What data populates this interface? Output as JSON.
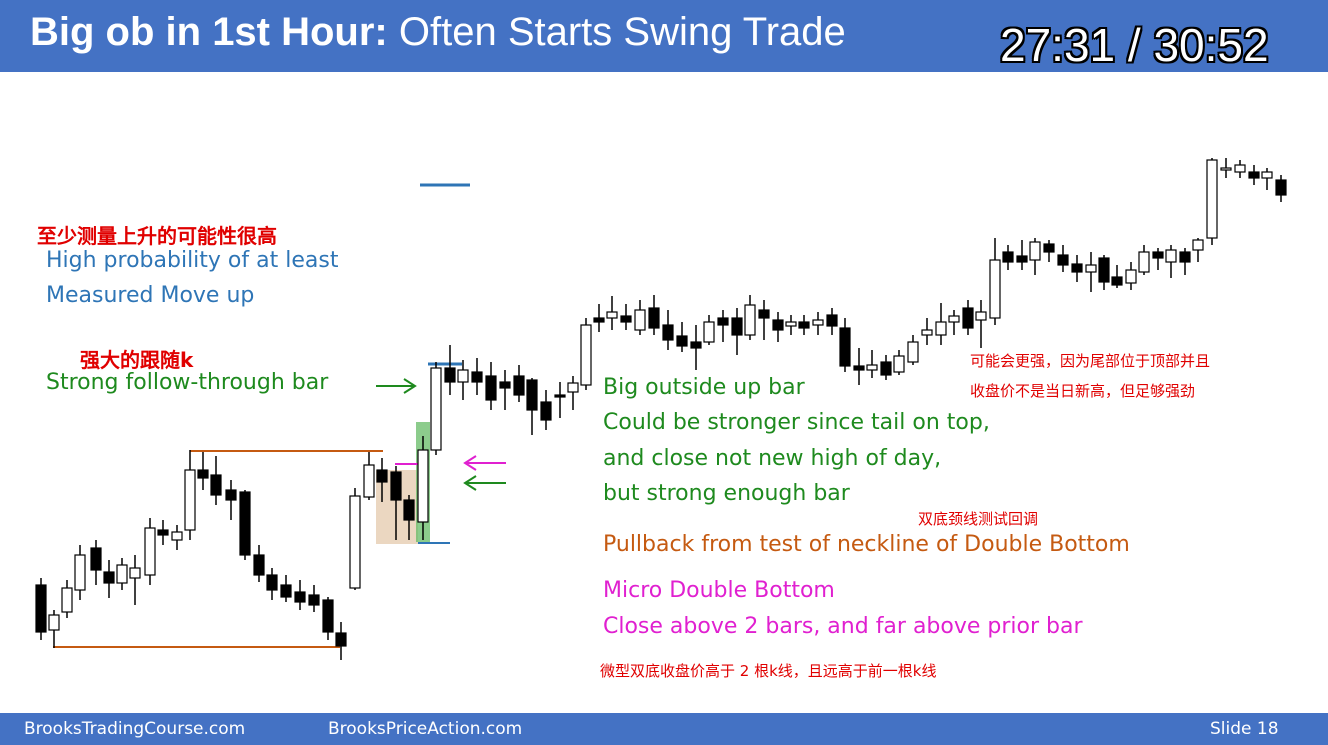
{
  "header": {
    "title_bold": "Big ob in 1st Hour:",
    "title_rest": " Often Starts Swing Trade",
    "timer": "27:31 / 30:52"
  },
  "footer": {
    "left": "BrooksTradingCourse.com",
    "center": "BrooksPriceAction.com",
    "right": "Slide  18"
  },
  "annotations": {
    "measured_move_cn": "至少测量上升的可能性很高",
    "measured_move_en_1": "High probability of at least",
    "measured_move_en_2": "Measured Move up",
    "follow_through_cn": "强大的跟随k",
    "follow_through_en": "Strong follow-through bar",
    "outside_bar_1": "Big outside up bar",
    "outside_bar_2": "Could be stronger since tail on top,",
    "outside_bar_3": "and close not new high of day,",
    "outside_bar_4": "but strong enough bar",
    "right_cn_1": "可能会更强，因为尾部位于顶部并且",
    "right_cn_2": "收盘价不是当日新高，但足够强劲",
    "pullback_cn": "双底颈线测试回调",
    "pullback_en": "Pullback from test of neckline of Double Bottom",
    "micro_db_1": "Micro Double Bottom",
    "micro_db_2": "Close above 2 bars, and far above prior bar",
    "micro_db_cn": "微型双底收盘价高于 2 根k线，且远高于前一根k线"
  },
  "colors": {
    "header_bg": "#4472c4",
    "blue_text": "#2e75b6",
    "green_text": "#1e8a1e",
    "orange_text": "#c55a11",
    "magenta_text": "#e020d0",
    "red_text": "#e00000"
  }
}
